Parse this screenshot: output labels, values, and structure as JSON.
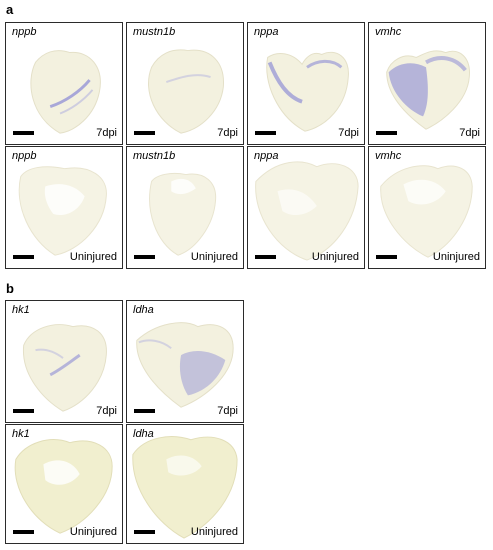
{
  "section_a": {
    "label": "a",
    "injured": [
      {
        "gene": "nppb",
        "condition": "7dpi",
        "stain": "low"
      },
      {
        "gene": "mustn1b",
        "condition": "7dpi",
        "stain": "low"
      },
      {
        "gene": "nppa",
        "condition": "7dpi",
        "stain": "medium"
      },
      {
        "gene": "vmhc",
        "condition": "7dpi",
        "stain": "high"
      }
    ],
    "uninjured": [
      {
        "gene": "nppb",
        "condition": "Uninjured"
      },
      {
        "gene": "mustn1b",
        "condition": "Uninjured"
      },
      {
        "gene": "nppa",
        "condition": "Uninjured"
      },
      {
        "gene": "vmhc",
        "condition": "Uninjured"
      }
    ]
  },
  "section_b": {
    "label": "b",
    "injured": [
      {
        "gene": "hk1",
        "condition": "7dpi",
        "stain": "low"
      },
      {
        "gene": "ldha",
        "condition": "7dpi",
        "stain": "medium"
      }
    ],
    "uninjured": [
      {
        "gene": "hk1",
        "condition": "Uninjured"
      },
      {
        "gene": "ldha",
        "condition": "Uninjured"
      }
    ]
  },
  "colors": {
    "tissue_fill": "#f3f1df",
    "tissue_outline": "#e4e0c8",
    "stain": "#6a6ad2",
    "frame": "#2b2b2b"
  }
}
